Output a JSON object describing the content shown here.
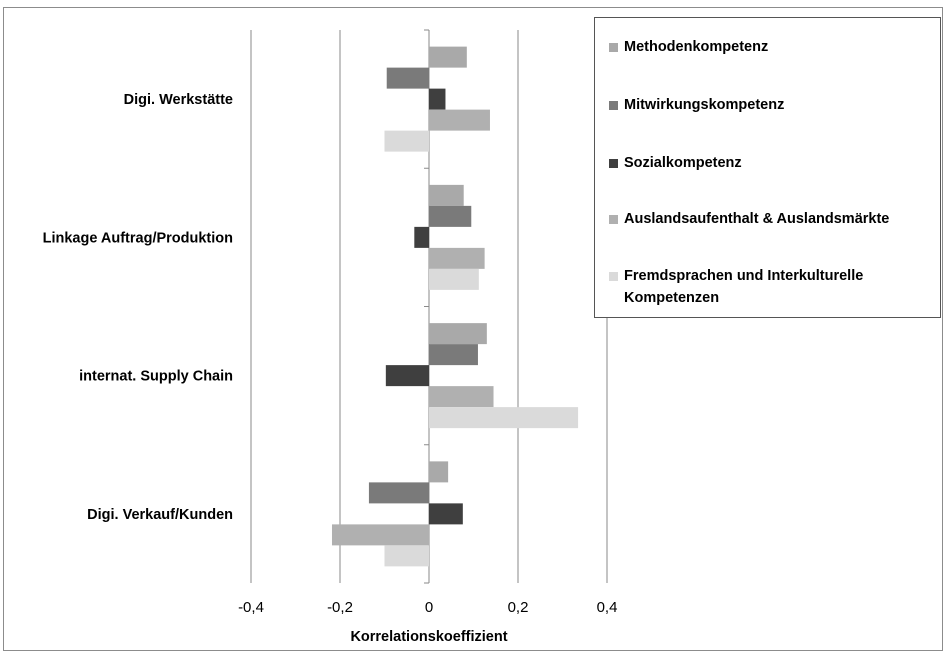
{
  "chart_data": {
    "type": "bar",
    "orientation": "horizontal",
    "categories": [
      "Digi. Werkstätte",
      "Linkage Auftrag/Produktion",
      "internat. Supply Chain",
      "Digi. Verkauf/Kunden"
    ],
    "series": [
      {
        "name": "Methodenkompetenz",
        "color": "#a9a9a9",
        "values": [
          0.085,
          0.078,
          0.13,
          0.043
        ]
      },
      {
        "name": "Mitwirkungskompetenz",
        "color": "#7a7a7a",
        "values": [
          -0.095,
          0.095,
          0.11,
          -0.135
        ]
      },
      {
        "name": "Sozialkompetenz",
        "color": "#3f3f3f",
        "values": [
          0.037,
          -0.033,
          -0.097,
          0.076
        ]
      },
      {
        "name": "Auslandsaufenthalt & Auslandsmärkte",
        "color": "#b0b0b0",
        "values": [
          0.137,
          0.125,
          0.145,
          -0.218
        ]
      },
      {
        "name": "Fremdsprachen und Interkulturelle Kompetenzen",
        "color": "#dadada",
        "values": [
          -0.1,
          0.112,
          0.335,
          -0.1
        ]
      }
    ],
    "xlim": [
      -0.4,
      0.4
    ],
    "xticks": [
      -0.4,
      -0.2,
      0,
      0.2,
      0.4
    ],
    "xtick_labels": [
      "-0,4",
      "-0,2",
      "0",
      "0,2",
      "0,4"
    ],
    "xlabel": "Korrelationskoeffizient",
    "ylabel": "",
    "grid": "vertical",
    "legend_position": "top-right"
  }
}
